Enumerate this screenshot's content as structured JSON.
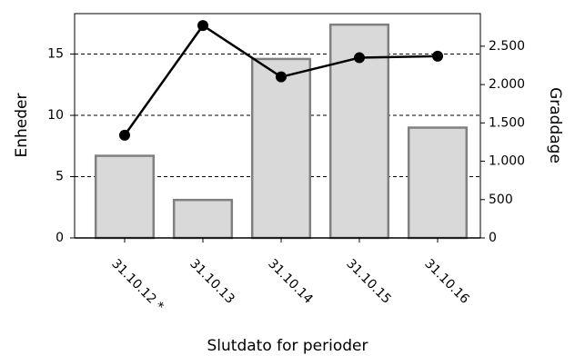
{
  "chart_data": {
    "type": "bar_line",
    "x_label": "Slutdato for perioder",
    "y_label": "Enheder",
    "y2_label": "Graddage",
    "categories": [
      "31.10.12 *",
      "31.10.13",
      "31.10.14",
      "31.10.15",
      "31.10.16"
    ],
    "series": [
      {
        "name": "Enheder",
        "type": "bar",
        "color": "#d9d9d9",
        "values": [
          6.7,
          3.1,
          14.6,
          17.4,
          9.0
        ]
      },
      {
        "name": "Graddage",
        "type": "line",
        "axis": "y2",
        "color": "#000000",
        "values": [
          1340,
          2770,
          2100,
          2350,
          2370
        ]
      }
    ],
    "ylim": [
      0,
      18.3
    ],
    "yticks": [
      0,
      5,
      10,
      15
    ],
    "y2lim": [
      0,
      2925
    ],
    "y2ticks": [
      0,
      500,
      {
        "value": 1000,
        "label": "1.000"
      },
      {
        "value": 1500,
        "label": "1.500"
      },
      {
        "value": 2000,
        "label": "2.000"
      },
      {
        "value": 2500,
        "label": "2.500"
      }
    ],
    "grid": true
  }
}
